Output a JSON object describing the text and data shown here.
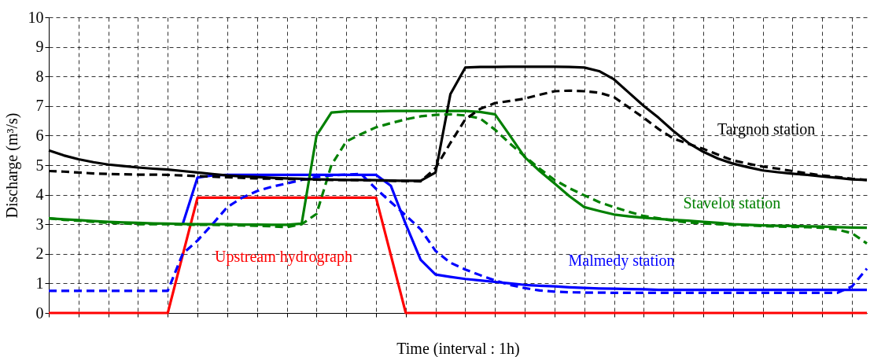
{
  "chart_data": {
    "type": "line",
    "xlabel": "Time (interval : 1h)",
    "ylabel": "Discharge (m³/s)",
    "categories": [
      null,
      null,
      null,
      null,
      null,
      null,
      null,
      null,
      null,
      null,
      null,
      null,
      null,
      null,
      null,
      null,
      null,
      null,
      null,
      null,
      null,
      null,
      null,
      null,
      null,
      null,
      null,
      null,
      null,
      null,
      null,
      null,
      null,
      null,
      null,
      null,
      null,
      null,
      null,
      null,
      null,
      null,
      null,
      null,
      null,
      null,
      null,
      null,
      null,
      null,
      null,
      null,
      null,
      null,
      null,
      null
    ],
    "ylim": [
      0,
      10
    ],
    "yticks": [
      0,
      1,
      2,
      3,
      4,
      5,
      6,
      7,
      8,
      9,
      10
    ],
    "grid": true,
    "marker": "none",
    "series": [
      {
        "color": "#ff0000",
        "line_style": "solid",
        "values": [
          0,
          0,
          0,
          0,
          0,
          0,
          0,
          0,
          0,
          1.95,
          3.9,
          3.9,
          3.9,
          3.9,
          3.9,
          3.9,
          3.9,
          3.9,
          3.9,
          3.9,
          3.9,
          3.9,
          3.9,
          1.95,
          0,
          0,
          0,
          0,
          0,
          0,
          0,
          0,
          0,
          0,
          0,
          0,
          0,
          0,
          0,
          0,
          0,
          0,
          0,
          0,
          0,
          0,
          0,
          0,
          0,
          0,
          0,
          0,
          0,
          0,
          0,
          0
        ]
      },
      {
        "color": "#0000ff",
        "line_style": "solid",
        "values": [
          null,
          null,
          null,
          null,
          null,
          null,
          null,
          null,
          null,
          3.0,
          4.58,
          4.65,
          4.67,
          4.67,
          4.67,
          4.67,
          4.67,
          4.67,
          4.67,
          4.67,
          4.67,
          4.67,
          4.67,
          4.3,
          3.0,
          1.8,
          1.3,
          1.22,
          1.15,
          1.1,
          1.05,
          1.0,
          0.95,
          0.92,
          0.9,
          0.87,
          0.85,
          0.83,
          0.82,
          0.81,
          0.8,
          0.78,
          0.78,
          0.78,
          0.78,
          0.78,
          0.78,
          0.78,
          0.78,
          0.78,
          0.78,
          0.78,
          0.78,
          0.78,
          0.78,
          0.78
        ]
      },
      {
        "color": "#008000",
        "line_style": "solid",
        "values": [
          3.2,
          3.17,
          3.14,
          3.11,
          3.08,
          3.06,
          3.05,
          3.03,
          3.02,
          3.01,
          3.0,
          3.0,
          3.0,
          2.99,
          2.99,
          2.98,
          2.98,
          3.02,
          6.0,
          6.78,
          6.82,
          6.82,
          6.82,
          6.83,
          6.83,
          6.83,
          6.83,
          6.83,
          6.83,
          6.8,
          6.72,
          6.0,
          5.27,
          4.8,
          4.38,
          3.95,
          3.58,
          3.45,
          3.33,
          3.27,
          3.22,
          3.18,
          3.15,
          3.12,
          3.08,
          3.05,
          3.0,
          2.98,
          2.96,
          2.95,
          2.94,
          2.93,
          2.92,
          2.9,
          2.89,
          2.88
        ]
      },
      {
        "color": "#000000",
        "line_style": "solid",
        "values": [
          5.5,
          5.33,
          5.2,
          5.1,
          5.02,
          4.97,
          4.92,
          4.88,
          4.85,
          4.8,
          4.75,
          4.7,
          4.65,
          4.62,
          4.6,
          4.57,
          4.55,
          4.54,
          4.52,
          4.51,
          4.5,
          4.5,
          4.49,
          4.48,
          4.47,
          4.47,
          4.75,
          7.4,
          8.3,
          8.32,
          8.32,
          8.33,
          8.33,
          8.33,
          8.33,
          8.32,
          8.3,
          8.18,
          7.9,
          7.45,
          7.0,
          6.6,
          6.15,
          5.75,
          5.45,
          5.22,
          5.05,
          4.93,
          4.82,
          4.76,
          4.71,
          4.67,
          4.62,
          4.57,
          4.52,
          4.5
        ]
      },
      {
        "color": "#0000ff",
        "line_style": "dashed",
        "values": [
          0.75,
          0.75,
          0.75,
          0.75,
          0.75,
          0.75,
          0.75,
          0.75,
          0.75,
          2.0,
          2.45,
          3.0,
          3.58,
          3.9,
          4.12,
          4.27,
          4.38,
          4.5,
          4.6,
          4.65,
          4.68,
          4.7,
          4.2,
          3.75,
          3.3,
          2.83,
          2.1,
          1.7,
          1.47,
          1.28,
          1.1,
          0.95,
          0.84,
          0.76,
          0.72,
          0.7,
          0.69,
          0.69,
          0.68,
          0.68,
          0.68,
          0.68,
          0.68,
          0.68,
          0.68,
          0.68,
          0.68,
          0.68,
          0.68,
          0.68,
          0.68,
          0.68,
          0.68,
          0.68,
          0.9,
          1.5
        ]
      },
      {
        "color": "#008000",
        "line_style": "dashed",
        "values": [
          3.2,
          3.15,
          3.12,
          3.08,
          3.05,
          3.03,
          3.0,
          3.0,
          3.0,
          2.99,
          2.98,
          2.98,
          2.97,
          2.96,
          2.95,
          2.93,
          2.9,
          3.0,
          3.35,
          5.0,
          5.8,
          6.05,
          6.28,
          6.42,
          6.55,
          6.65,
          6.7,
          6.72,
          6.68,
          6.58,
          6.2,
          5.73,
          5.3,
          4.88,
          4.5,
          4.22,
          3.98,
          3.75,
          3.58,
          3.42,
          3.28,
          3.2,
          3.12,
          3.06,
          3.03,
          3.0,
          2.98,
          2.96,
          2.94,
          2.92,
          2.91,
          2.9,
          2.88,
          2.82,
          2.7,
          2.35
        ]
      },
      {
        "color": "#000000",
        "line_style": "dashed",
        "values": [
          4.8,
          4.78,
          4.75,
          4.72,
          4.7,
          4.69,
          4.68,
          4.68,
          4.67,
          4.65,
          4.63,
          4.61,
          4.59,
          4.57,
          4.55,
          4.54,
          4.53,
          4.52,
          4.51,
          4.5,
          4.5,
          4.49,
          4.48,
          4.47,
          4.46,
          4.45,
          4.9,
          5.75,
          6.55,
          6.9,
          7.1,
          7.17,
          7.25,
          7.38,
          7.5,
          7.52,
          7.5,
          7.45,
          7.3,
          6.95,
          6.6,
          6.22,
          5.9,
          5.72,
          5.55,
          5.35,
          5.16,
          5.05,
          4.95,
          4.88,
          4.8,
          4.72,
          4.65,
          4.6,
          4.54,
          4.5
        ]
      }
    ],
    "annotations": [
      "Upstream hydrograph",
      "Malmedy station",
      "Stavelot station",
      "Targnon station"
    ]
  }
}
